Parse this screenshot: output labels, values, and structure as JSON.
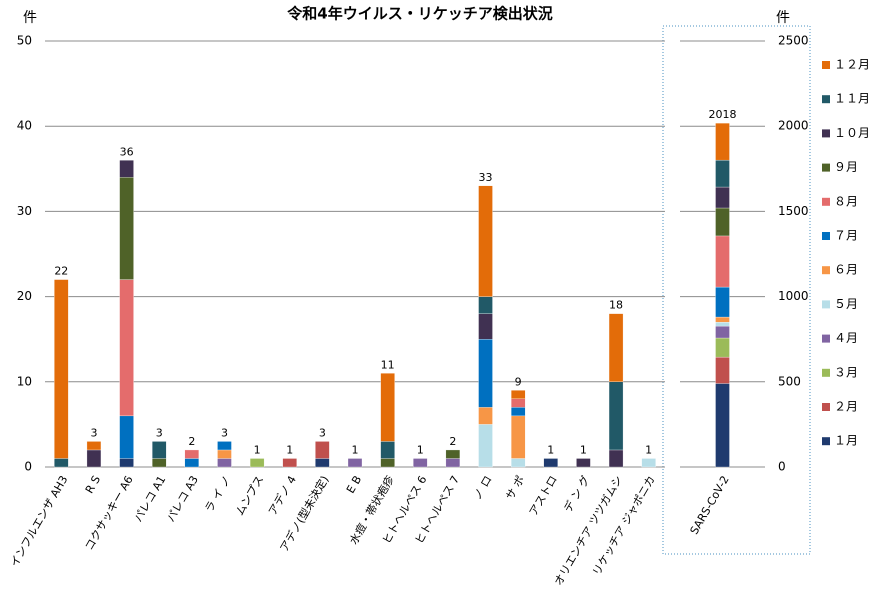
{
  "chart_data": [
    {
      "type": "bar",
      "stacked": true,
      "title": "令和4年ウイルス・リケッチア検出状況",
      "y_label": "件",
      "categories": [
        "インフルエンザ AH3",
        "R S",
        "コクサッキー A6",
        "パレコ A1",
        "パレコ A3",
        "ラ イ ノ",
        "ムンプス",
        "アデノ 4",
        "アデノ(型未決定)",
        "E B",
        "水痘・帯状疱疹",
        "ヒトヘルペス 6",
        "ヒトヘルペス 7",
        "ノ ロ",
        "サ ポ",
        "アストロ",
        "デ ン グ",
        "オリエンチア ツツガムシ",
        "リケッチア ジャポニカ"
      ],
      "series": [
        {
          "name": "１月",
          "color": "#1f3a6e",
          "values": [
            0,
            0,
            1,
            0,
            0,
            0,
            0,
            0,
            1,
            0,
            0,
            0,
            0,
            0,
            0,
            1,
            0,
            0,
            0
          ]
        },
        {
          "name": "２月",
          "color": "#c0504d",
          "values": [
            0,
            0,
            0,
            0,
            0,
            0,
            0,
            1,
            2,
            0,
            0,
            0,
            0,
            0,
            0,
            0,
            0,
            0,
            0
          ]
        },
        {
          "name": "３月",
          "color": "#9bbb59",
          "values": [
            0,
            0,
            0,
            0,
            0,
            0,
            1,
            0,
            0,
            0,
            0,
            0,
            0,
            0,
            0,
            0,
            0,
            0,
            0
          ]
        },
        {
          "name": "４月",
          "color": "#8064a2",
          "values": [
            0,
            0,
            0,
            0,
            0,
            1,
            0,
            0,
            0,
            1,
            0,
            1,
            1,
            0,
            0,
            0,
            0,
            0,
            0
          ]
        },
        {
          "name": "５月",
          "color": "#b7dee8",
          "values": [
            0,
            0,
            0,
            0,
            0,
            0,
            0,
            0,
            0,
            0,
            0,
            0,
            0,
            5,
            1,
            0,
            0,
            0,
            1
          ]
        },
        {
          "name": "６月",
          "color": "#f79646",
          "values": [
            0,
            0,
            0,
            0,
            0,
            1,
            0,
            0,
            0,
            0,
            0,
            0,
            0,
            2,
            5,
            0,
            0,
            0,
            0
          ]
        },
        {
          "name": "７月",
          "color": "#0070c0",
          "values": [
            0,
            0,
            5,
            0,
            1,
            1,
            0,
            0,
            0,
            0,
            0,
            0,
            0,
            8,
            1,
            0,
            0,
            0,
            0
          ]
        },
        {
          "name": "８月",
          "color": "#e46c6c",
          "values": [
            0,
            0,
            16,
            0,
            1,
            0,
            0,
            0,
            0,
            0,
            0,
            0,
            0,
            0,
            1,
            0,
            0,
            0,
            0
          ]
        },
        {
          "name": "９月",
          "color": "#4f6228",
          "values": [
            0,
            0,
            12,
            1,
            0,
            0,
            0,
            0,
            0,
            0,
            1,
            0,
            1,
            0,
            0,
            0,
            0,
            0,
            0
          ]
        },
        {
          "name": "１０月",
          "color": "#403152",
          "values": [
            0,
            2,
            2,
            0,
            0,
            0,
            0,
            0,
            0,
            0,
            0,
            0,
            0,
            3,
            0,
            0,
            1,
            2,
            0
          ]
        },
        {
          "name": "１１月",
          "color": "#215967",
          "values": [
            1,
            0,
            0,
            2,
            0,
            0,
            0,
            0,
            0,
            0,
            2,
            0,
            0,
            2,
            0,
            0,
            0,
            8,
            0
          ]
        },
        {
          "name": "１２月",
          "color": "#e36c09",
          "values": [
            21,
            1,
            0,
            0,
            0,
            0,
            0,
            0,
            0,
            0,
            8,
            0,
            0,
            13,
            1,
            0,
            0,
            8,
            0
          ]
        }
      ],
      "totals": [
        22,
        3,
        36,
        3,
        2,
        3,
        1,
        1,
        3,
        1,
        11,
        1,
        2,
        33,
        9,
        1,
        1,
        18,
        1
      ],
      "ylim": [
        0,
        50
      ],
      "yticks": [
        0,
        10,
        20,
        30,
        40,
        50
      ],
      "grid": true
    },
    {
      "type": "bar",
      "stacked": true,
      "y_label": "件",
      "categories": [
        "SARS-CoV-2"
      ],
      "series": [
        {
          "values": [
            490
          ]
        },
        {
          "values": [
            155
          ]
        },
        {
          "values": [
            112
          ]
        },
        {
          "values": [
            70
          ]
        },
        {
          "values": [
            23
          ]
        },
        {
          "values": [
            30
          ]
        },
        {
          "values": [
            176
          ]
        },
        {
          "values": [
            300
          ]
        },
        {
          "values": [
            164
          ]
        },
        {
          "values": [
            123
          ]
        },
        {
          "values": [
            158
          ]
        },
        {
          "values": [
            217
          ]
        }
      ],
      "totals": [
        2018
      ],
      "ylim": [
        0,
        2500
      ],
      "yticks": [
        0,
        500,
        1000,
        1500,
        2000,
        2500
      ],
      "grid": true
    }
  ]
}
